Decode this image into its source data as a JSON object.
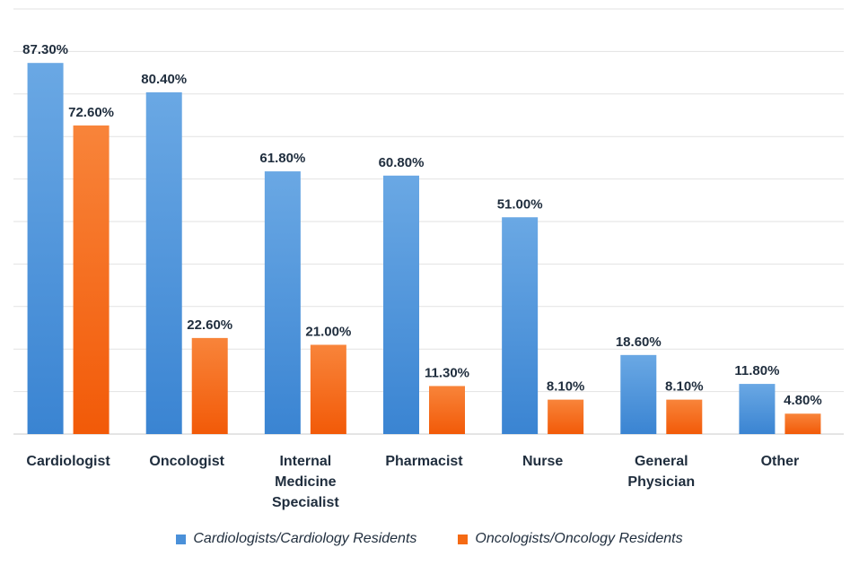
{
  "chart_data": {
    "type": "bar",
    "title": "",
    "xlabel": "",
    "ylabel": "",
    "ylim": [
      0,
      100
    ],
    "gridlines": true,
    "categories": [
      [
        "Cardiologist"
      ],
      [
        "Oncologist"
      ],
      [
        "Internal",
        "Medicine",
        "Specialist"
      ],
      [
        "Pharmacist"
      ],
      [
        "Nurse"
      ],
      [
        "General",
        "Physician"
      ],
      [
        "Other"
      ]
    ],
    "series": [
      {
        "name": "Cardiologists/Cardiology Residents",
        "color": "#4a90d9",
        "values": [
          87.3,
          80.4,
          61.8,
          60.8,
          51.0,
          18.6,
          11.8
        ],
        "labels": [
          "87.30%",
          "80.40%",
          "61.80%",
          "60.80%",
          "51.00%",
          "18.60%",
          "11.80%"
        ]
      },
      {
        "name": "Oncologists/Oncology Residents",
        "color": "#f56a14",
        "values": [
          72.6,
          22.6,
          21.0,
          11.3,
          8.1,
          8.1,
          4.8
        ],
        "labels": [
          "72.60%",
          "22.60%",
          "21.00%",
          "11.30%",
          "8.10%",
          "8.10%",
          "4.80%"
        ]
      }
    ],
    "legend_position": "bottom"
  }
}
